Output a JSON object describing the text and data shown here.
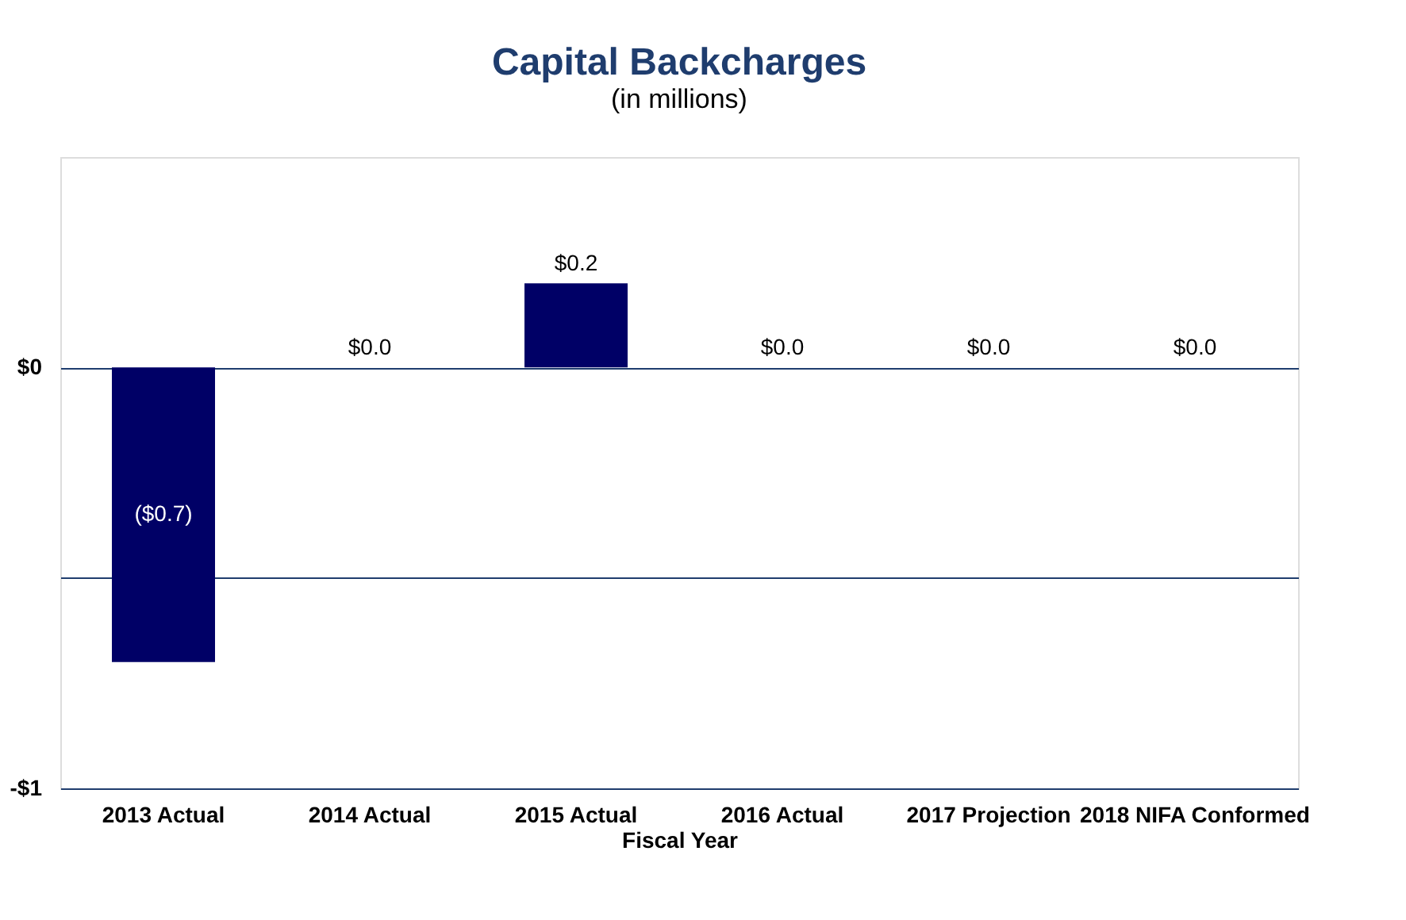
{
  "chart_data": {
    "type": "bar",
    "title": "Capital Backcharges",
    "subtitle": "(in millions)",
    "xlabel": "Fiscal Year",
    "categories": [
      "2013 Actual",
      "2014 Actual",
      "2015 Actual",
      "2016 Actual",
      "2017 Projection",
      "2018 NIFA Conformed"
    ],
    "values": [
      -0.7,
      0.0,
      0.2,
      0.0,
      0.0,
      0.0
    ],
    "value_labels": [
      "($0.7)",
      "$0.0",
      "$0.2",
      "$0.0",
      "$0.0",
      "$0.0"
    ],
    "color": "#000066",
    "ylim": [
      -1,
      0.5
    ],
    "yticks": [
      {
        "value": -1,
        "label": "-$1"
      },
      {
        "value": -0.5,
        "label": null
      },
      {
        "value": 0,
        "label": "$0"
      }
    ],
    "grid": "y"
  }
}
